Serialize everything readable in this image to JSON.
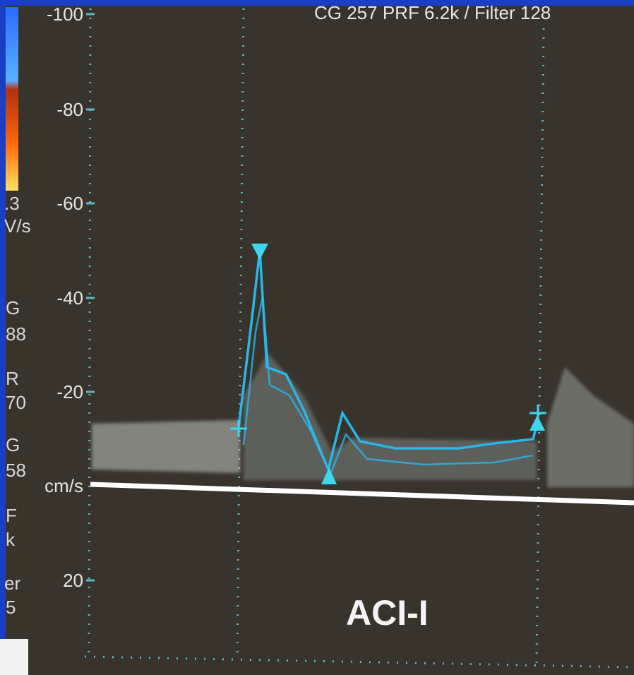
{
  "header": {
    "settings": "CG 257   PRF 6.2k   / Filter 128"
  },
  "axis": {
    "ticks": [
      "-100",
      "-80",
      "-60",
      "-40",
      "-20",
      "20"
    ],
    "unit": "cm/s"
  },
  "side_panel": {
    "labels": [
      ".3",
      "V/s",
      "G",
      "88",
      "R",
      "70",
      "G",
      "58",
      "F",
      "k",
      "er",
      "5"
    ]
  },
  "vessel_label": "ACI-I"
}
